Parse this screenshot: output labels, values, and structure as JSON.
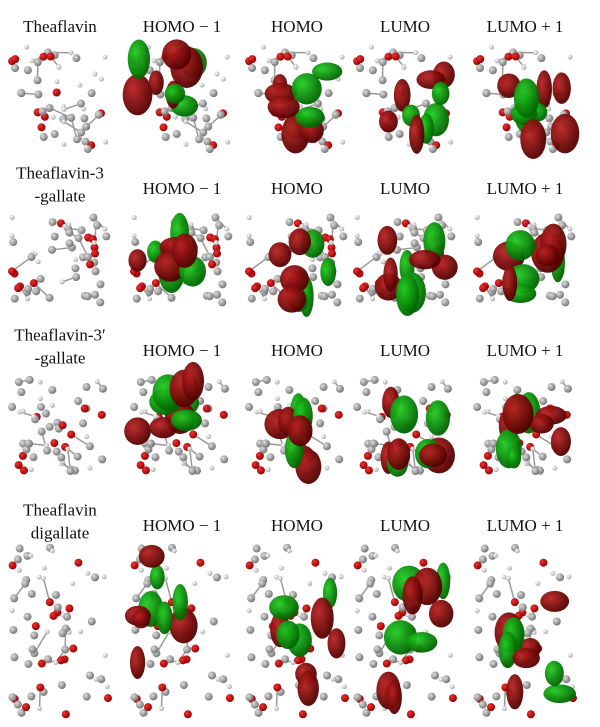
{
  "rows": [
    {
      "label": [
        "Theaflavin"
      ],
      "headers": [
        "HOMO − 1",
        "HOMO",
        "LUMO",
        "LUMO + 1"
      ]
    },
    {
      "label": [
        "Theaflavin-3",
        "-gallate"
      ],
      "headers": [
        "HOMO − 1",
        "HOMO",
        "LUMO",
        "LUMO + 1"
      ]
    },
    {
      "label": [
        "Theaflavin-3′",
        "-gallate"
      ],
      "headers": [
        "HOMO − 1",
        "HOMO",
        "LUMO",
        "LUMO + 1"
      ]
    },
    {
      "label": [
        "Theaflavin",
        "digallate"
      ],
      "headers": [
        "HOMO − 1",
        "HOMO",
        "LUMO",
        "LUMO + 1"
      ]
    }
  ]
}
